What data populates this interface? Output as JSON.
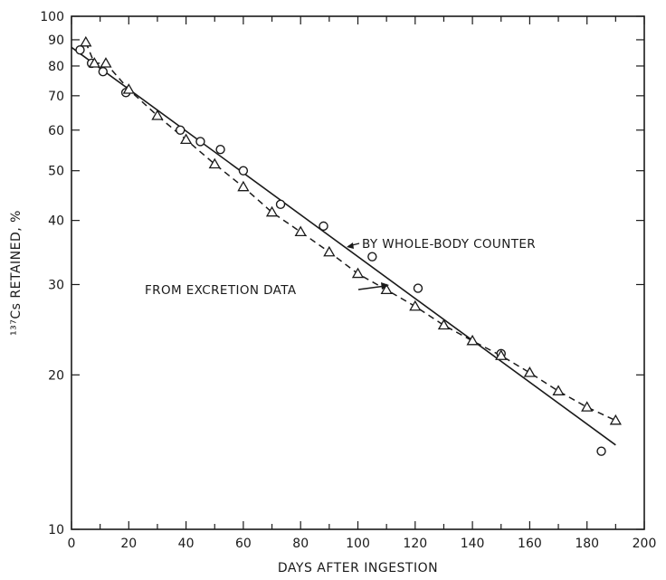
{
  "chart_data": {
    "type": "scatter",
    "xlabel": "DAYS AFTER INGESTION",
    "ylabel": "¹³⁷Cs RETAINED, %",
    "xlim": [
      0,
      200
    ],
    "ylim": [
      10,
      100
    ],
    "yscale": "log",
    "grid": false,
    "x_ticks": [
      "0",
      "20",
      "40",
      "60",
      "80",
      "100",
      "120",
      "140",
      "160",
      "180",
      "200"
    ],
    "y_ticks": [
      "10",
      "20",
      "30",
      "40",
      "50",
      "60",
      "70",
      "80",
      "90",
      "100"
    ],
    "series": [
      {
        "name": "BY WHOLE-BODY COUNTER",
        "marker": "circle",
        "line": "solid",
        "points": [
          [
            3,
            86
          ],
          [
            7,
            81
          ],
          [
            11,
            78
          ],
          [
            19,
            71
          ],
          [
            38,
            60
          ],
          [
            45,
            57
          ],
          [
            52,
            55
          ],
          [
            60,
            50
          ],
          [
            73,
            43
          ],
          [
            88,
            39
          ],
          [
            105,
            34
          ],
          [
            121,
            29.5
          ],
          [
            150,
            22
          ],
          [
            185,
            14.2
          ]
        ],
        "fit": [
          [
            0,
            87
          ],
          [
            190,
            14.6
          ]
        ]
      },
      {
        "name": "FROM EXCRETION DATA",
        "marker": "triangle",
        "line": "dashed",
        "points": [
          [
            5,
            89
          ],
          [
            8,
            81
          ],
          [
            12,
            81
          ],
          [
            20,
            72
          ],
          [
            30,
            64
          ],
          [
            40,
            57.5
          ],
          [
            50,
            51.5
          ],
          [
            60,
            46.5
          ],
          [
            70,
            41.5
          ],
          [
            80,
            38
          ],
          [
            90,
            34.7
          ],
          [
            100,
            31.5
          ],
          [
            110,
            29.3
          ],
          [
            120,
            27.2
          ],
          [
            130,
            25
          ],
          [
            140,
            23.3
          ],
          [
            150,
            21.8
          ],
          [
            160,
            20.2
          ],
          [
            170,
            18.6
          ],
          [
            180,
            17.3
          ],
          [
            190,
            16.3
          ]
        ]
      }
    ],
    "annotations": [
      "BY WHOLE-BODY COUNTER",
      "FROM EXCRETION DATA"
    ]
  }
}
